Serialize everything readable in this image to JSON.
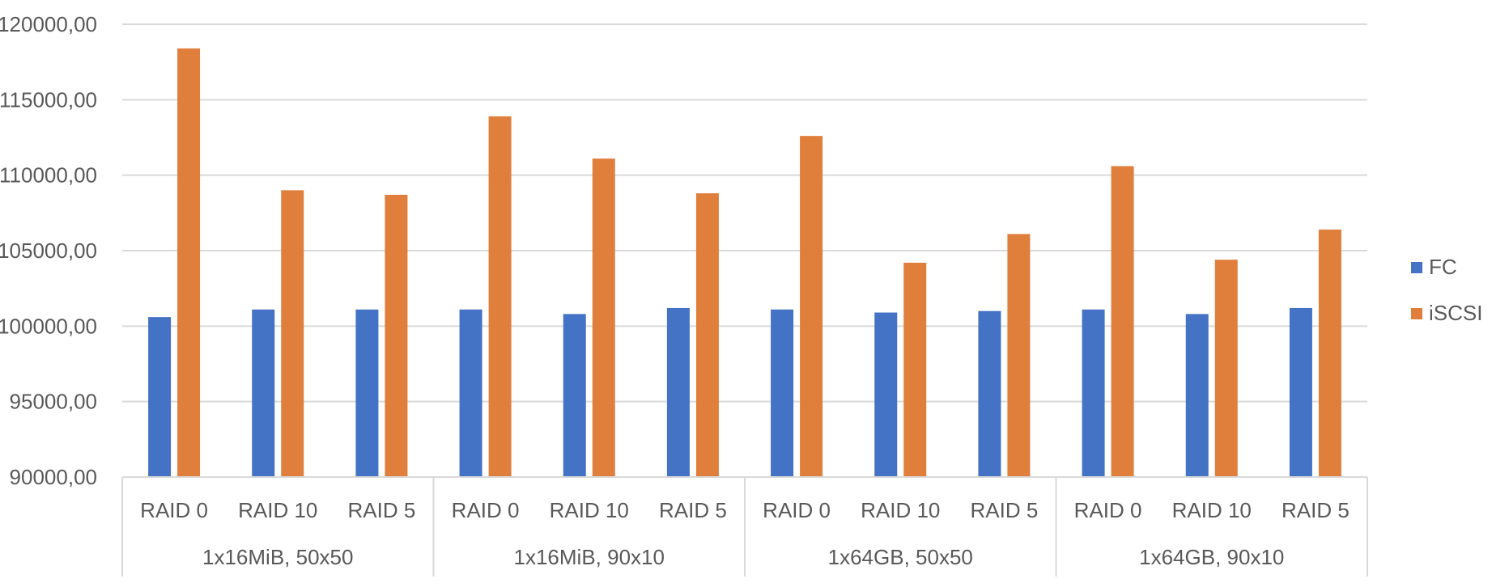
{
  "chart_data": {
    "type": "bar",
    "grouped_categories": true,
    "groups": [
      {
        "label": "1x16MiB, 50x50",
        "categories": [
          "RAID 0",
          "RAID 10",
          "RAID 5"
        ]
      },
      {
        "label": "1x16MiB, 90x10",
        "categories": [
          "RAID 0",
          "RAID 10",
          "RAID 5"
        ]
      },
      {
        "label": "1x64GB, 50x50",
        "categories": [
          "RAID 0",
          "RAID 10",
          "RAID 5"
        ]
      },
      {
        "label": "1x64GB, 90x10",
        "categories": [
          "RAID 0",
          "RAID 10",
          "RAID 5"
        ]
      }
    ],
    "series": [
      {
        "name": "FC",
        "color": "#4472C4",
        "values": [
          100600,
          101100,
          101100,
          101100,
          100800,
          101200,
          101100,
          100900,
          101000,
          101100,
          100800,
          101200
        ]
      },
      {
        "name": "iSCSI",
        "color": "#E07E3C",
        "values": [
          118400,
          109000,
          108700,
          113900,
          111100,
          108800,
          112600,
          104200,
          106100,
          110600,
          104400,
          106400
        ]
      }
    ],
    "ylim": [
      90000,
      120000
    ],
    "yticks": [
      "90000,00",
      "95000,00",
      "100000,00",
      "105000,00",
      "110000,00",
      "115000,00",
      "120000,00"
    ],
    "ytick_values": [
      90000,
      95000,
      100000,
      105000,
      110000,
      115000,
      120000
    ],
    "grid": true,
    "legend_position": "right",
    "gridline_color": "#D9D9D9",
    "axis_color": "#D9D9D9"
  }
}
